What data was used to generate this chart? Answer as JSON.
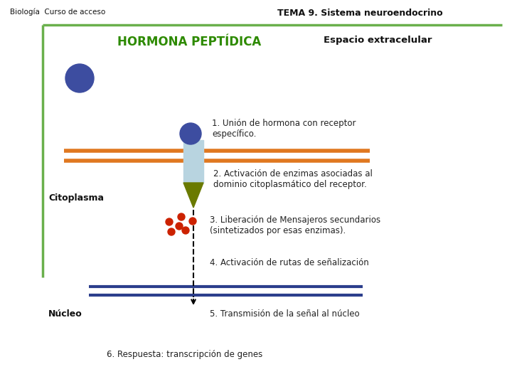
{
  "bg_color": "#ffffff",
  "title_left": "Biología  Curso de acceso",
  "title_right": "TEMA 9. Sistema neuroendocrino",
  "hormona_label": "HORMONA PEPTÍDICA",
  "espacio_label": "Espacio extracelular",
  "citoplasma_label": "Citoplasma",
  "nucleo_label": "Núcleo",
  "step1": "1. Unión de hormona con receptor\nespecífico.",
  "step2": "2. Activación de enzimas asociadas al\ndominio citoplasmático del receptor.",
  "step3": "3. Liberación de Mensajeros secundarios\n(sintetizados por esas enzimas).",
  "step4": "4. Activación de rutas de señalización",
  "step5": "5. Transmisión de la señal al núcleo",
  "step6": "6. Respuesta: transcripción de genes",
  "green_color": "#6ab04c",
  "orange_color": "#e07820",
  "navy_color": "#2c3e8c",
  "blue_circle_color": "#3d4da0",
  "receptor_color": "#b8d4e0",
  "triangle_color": "#6a7a00",
  "red_dot_color": "#cc2200",
  "text_color": "#222222",
  "green_text_color": "#2d8a00",
  "title_color": "#111111"
}
